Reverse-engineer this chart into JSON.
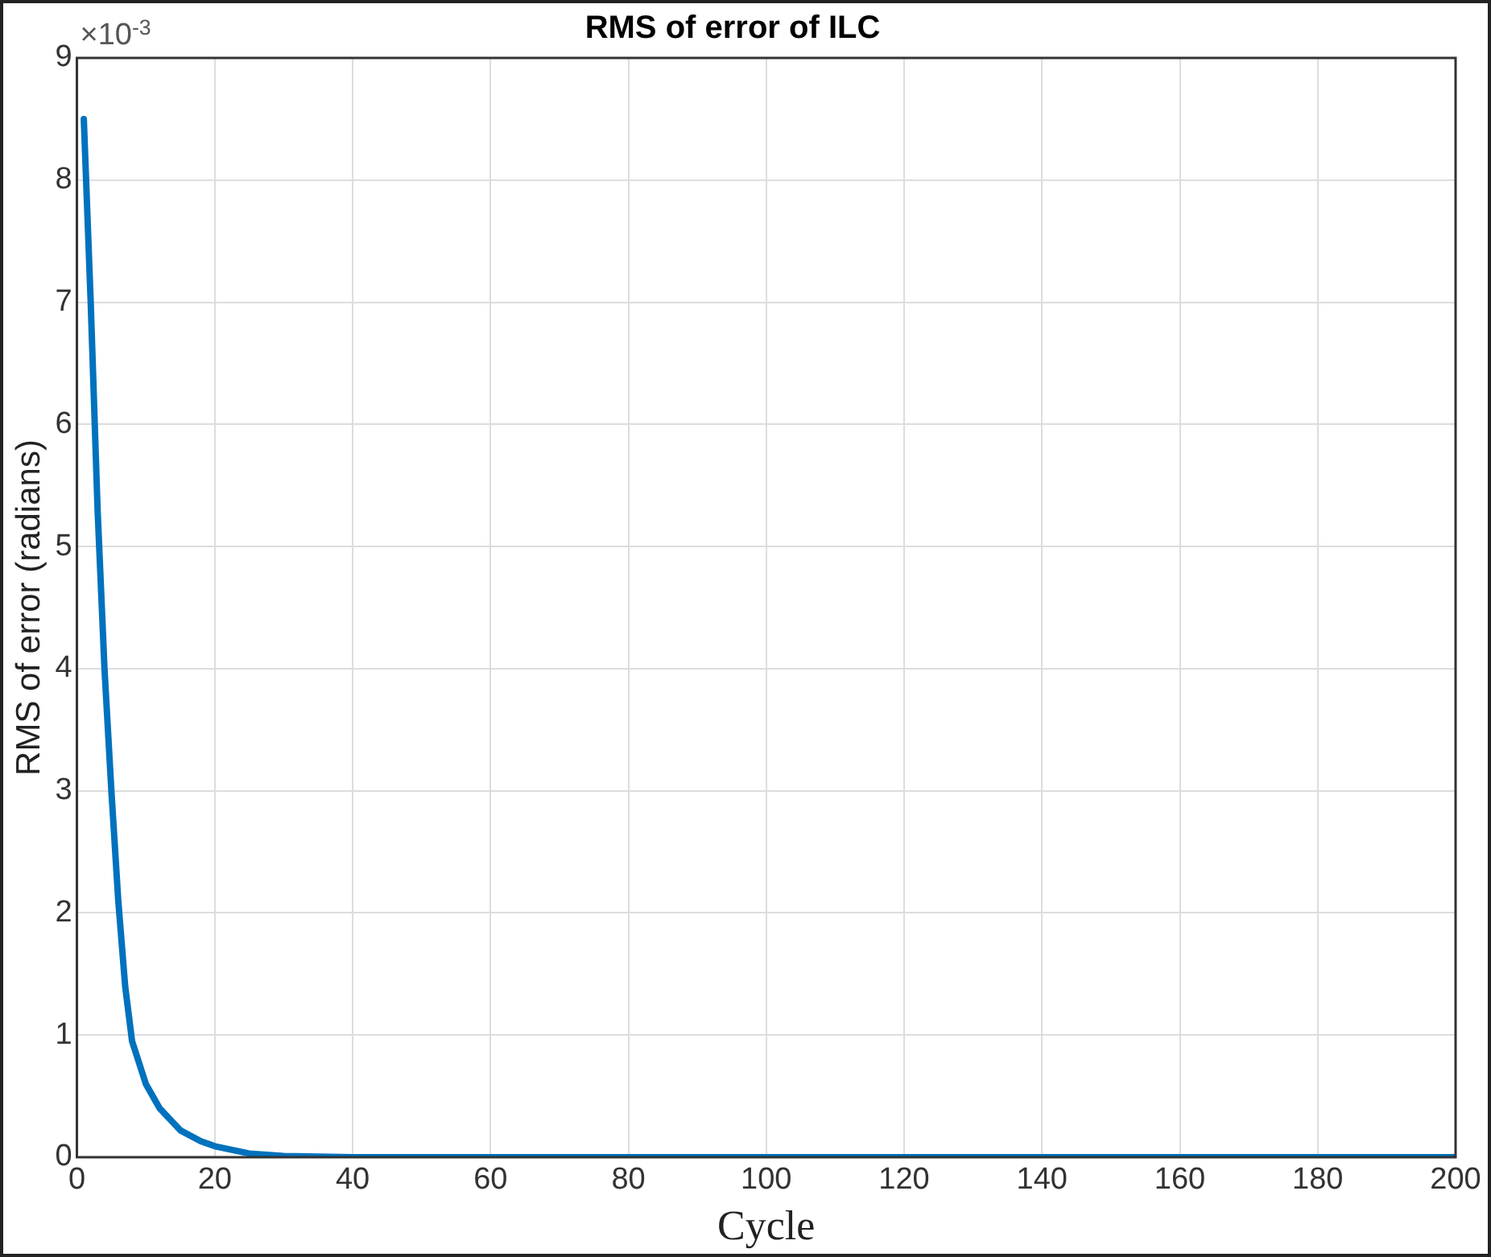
{
  "chart_data": {
    "type": "line",
    "title": "RMS of error of ILC",
    "xlabel": "Cycle",
    "ylabel": "RMS of error (radians)",
    "annotations": [
      "×10$^{-3}$"
    ],
    "series": [
      {
        "color": "#0072bd",
        "x": [
          1,
          2,
          3,
          4,
          5,
          6,
          7,
          8,
          10,
          12,
          15,
          18,
          20,
          25,
          30,
          40,
          60,
          100,
          150,
          200
        ],
        "values": [
          8.5,
          7.0,
          5.3,
          4.0,
          3.0,
          2.1,
          1.4,
          0.95,
          0.6,
          0.4,
          0.22,
          0.13,
          0.09,
          0.03,
          0.01,
          0,
          0,
          0,
          0,
          0
        ]
      }
    ],
    "xlim": [
      0,
      200
    ],
    "xticks": [
      0,
      20,
      40,
      60,
      80,
      100,
      120,
      140,
      160,
      180,
      200
    ],
    "ylim": [
      0,
      9
    ],
    "yticks": [
      0,
      1,
      2,
      3,
      4,
      5,
      6,
      7,
      8,
      9
    ],
    "grid": true,
    "legend": false,
    "marker": "none",
    "line_style": "solid"
  }
}
